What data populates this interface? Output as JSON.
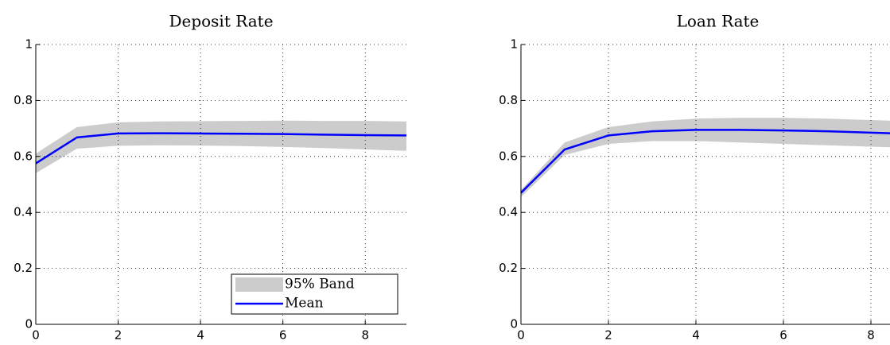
{
  "chart_data": [
    {
      "type": "line",
      "title": "Deposit Rate",
      "x": [
        0,
        1,
        2,
        3,
        4,
        5,
        6,
        7,
        8,
        9
      ],
      "xlim": [
        0,
        9
      ],
      "xticks": [
        0,
        2,
        4,
        6,
        8
      ],
      "ylim": [
        0,
        1
      ],
      "yticks": [
        0,
        0.2,
        0.4,
        0.6,
        0.8,
        1
      ],
      "grid": true,
      "legend_loc": "lower right",
      "series": [
        {
          "name": "95% Band",
          "color": "#cccccc",
          "upper": [
            0.61,
            0.705,
            0.722,
            0.725,
            0.726,
            0.727,
            0.728,
            0.727,
            0.727,
            0.725
          ],
          "lower": [
            0.54,
            0.628,
            0.638,
            0.64,
            0.639,
            0.637,
            0.634,
            0.63,
            0.625,
            0.62
          ]
        },
        {
          "name": "Mean",
          "color": "#0000ff",
          "values": [
            0.575,
            0.668,
            0.682,
            0.683,
            0.682,
            0.681,
            0.68,
            0.678,
            0.676,
            0.675
          ]
        }
      ]
    },
    {
      "type": "line",
      "title": "Loan Rate",
      "x": [
        0,
        1,
        2,
        3,
        4,
        5,
        6,
        7,
        8,
        9
      ],
      "xlim": [
        0,
        9
      ],
      "xticks": [
        0,
        2,
        4,
        6,
        8
      ],
      "ylim": [
        0,
        1
      ],
      "yticks": [
        0,
        0.2,
        0.4,
        0.6,
        0.8,
        1
      ],
      "grid": true,
      "series": [
        {
          "name": "95% Band",
          "color": "#cccccc",
          "upper": [
            0.48,
            0.65,
            0.705,
            0.725,
            0.735,
            0.738,
            0.738,
            0.735,
            0.73,
            0.725
          ],
          "lower": [
            0.455,
            0.605,
            0.645,
            0.655,
            0.655,
            0.65,
            0.645,
            0.64,
            0.635,
            0.63
          ]
        },
        {
          "name": "Mean",
          "color": "#0000ff",
          "values": [
            0.47,
            0.625,
            0.675,
            0.69,
            0.695,
            0.695,
            0.693,
            0.69,
            0.685,
            0.68
          ]
        }
      ]
    }
  ]
}
